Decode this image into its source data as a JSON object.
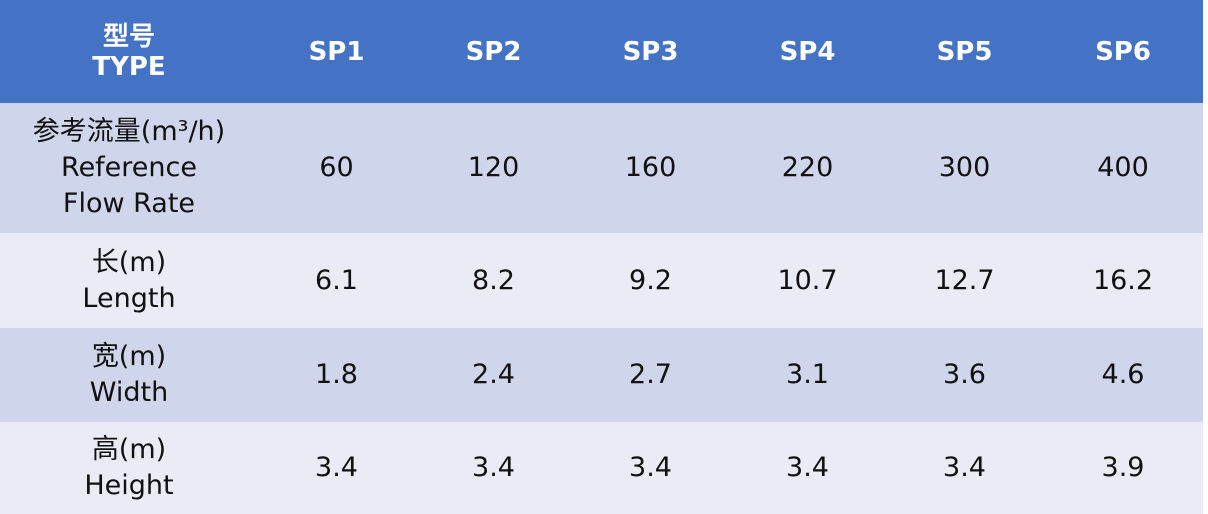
{
  "table": {
    "header": {
      "label": [
        "型号",
        "TYPE"
      ],
      "columns": [
        "SP1",
        "SP2",
        "SP3",
        "SP4",
        "SP5",
        "SP6"
      ]
    },
    "rows": [
      {
        "label": [
          "参考流量(m³/h)",
          "Reference",
          "Flow Rate"
        ],
        "values": [
          "60",
          "120",
          "160",
          "220",
          "300",
          "400"
        ]
      },
      {
        "label": [
          "长(m)",
          "Length"
        ],
        "values": [
          "6.1",
          "8.2",
          "9.2",
          "10.7",
          "12.7",
          "16.2"
        ]
      },
      {
        "label": [
          "宽(m)",
          "Width"
        ],
        "values": [
          "1.8",
          "2.4",
          "2.7",
          "3.1",
          "3.6",
          "4.6"
        ]
      },
      {
        "label": [
          "高(m)",
          "Height"
        ],
        "values": [
          "3.4",
          "3.4",
          "3.4",
          "3.4",
          "3.4",
          "3.9"
        ]
      }
    ]
  }
}
